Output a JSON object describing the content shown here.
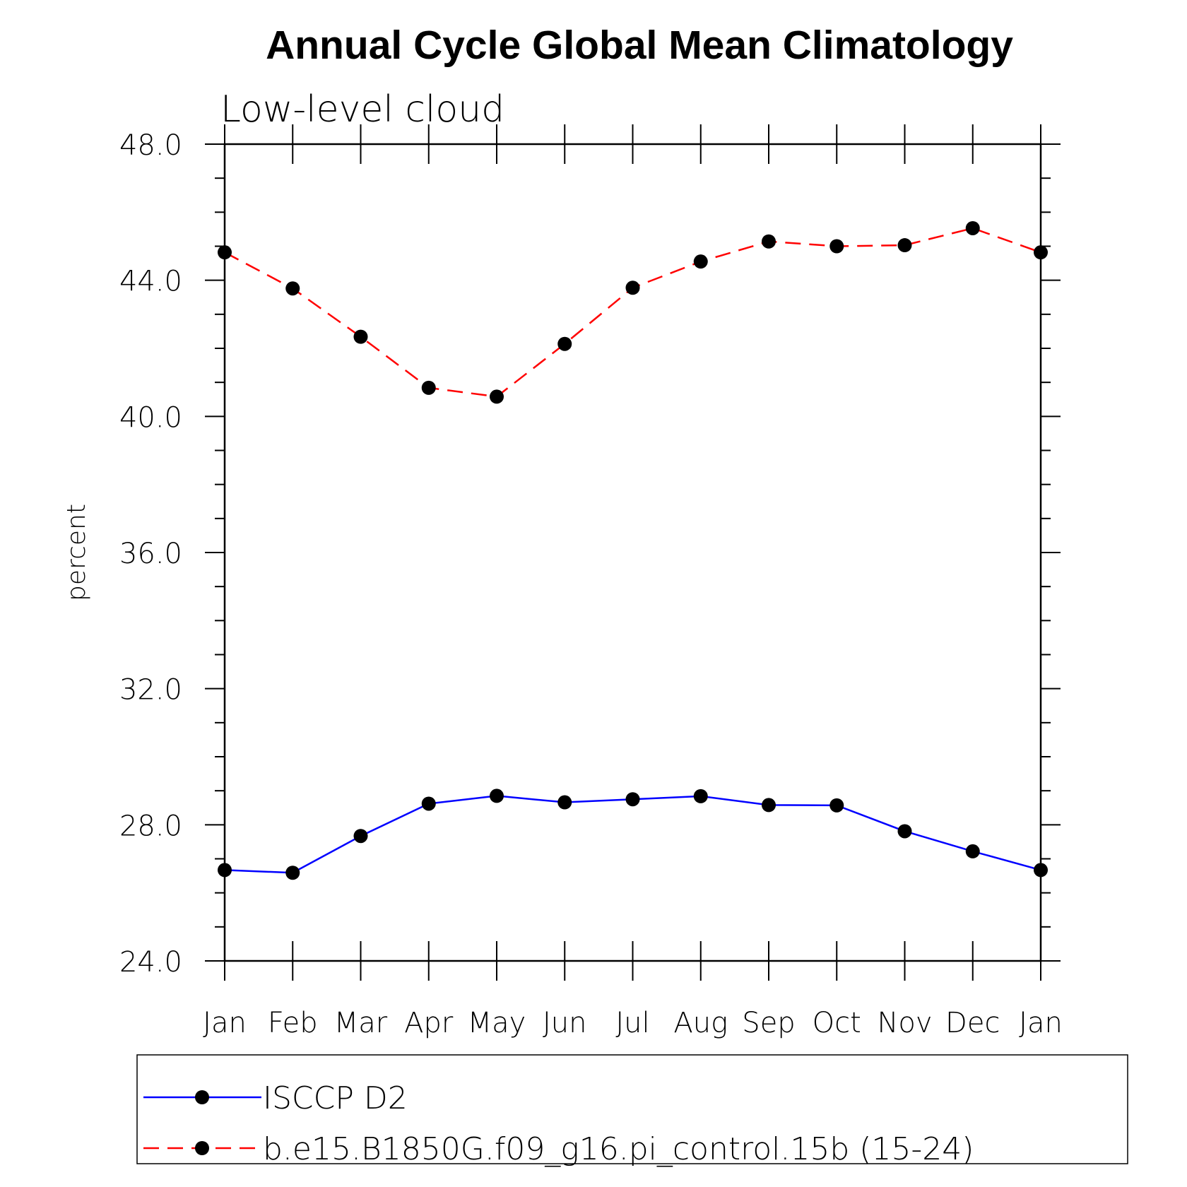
{
  "chart_data": {
    "type": "line",
    "title": "Annual Cycle Global Mean Climatology",
    "subtitle": "Low-level cloud",
    "xlabel": "",
    "ylabel": "percent",
    "categories": [
      "Jan",
      "Feb",
      "Mar",
      "Apr",
      "May",
      "Jun",
      "Jul",
      "Aug",
      "Sep",
      "Oct",
      "Nov",
      "Dec",
      "Jan"
    ],
    "ylim": [
      24.0,
      48.0
    ],
    "yticks": [
      "24.0",
      "28.0",
      "32.0",
      "36.0",
      "40.0",
      "44.0",
      "48.0"
    ],
    "grid": false,
    "legend_position": "bottom",
    "series": [
      {
        "name": "ISCCP D2",
        "color": "#0000ff",
        "line_style": "solid",
        "marker": "filled-circle",
        "values": [
          26.67,
          26.59,
          27.67,
          28.62,
          28.85,
          28.66,
          28.75,
          28.84,
          28.58,
          28.57,
          27.81,
          27.22,
          26.67
        ]
      },
      {
        "name": "b.e15.B1850G.f09_g16.pi_control.15b (15-24)",
        "color": "#ff0000",
        "line_style": "dashed",
        "marker": "filled-circle",
        "values": [
          44.82,
          43.76,
          42.34,
          40.84,
          40.58,
          42.13,
          43.78,
          44.55,
          45.14,
          45.0,
          45.03,
          45.53,
          44.82
        ]
      }
    ]
  }
}
